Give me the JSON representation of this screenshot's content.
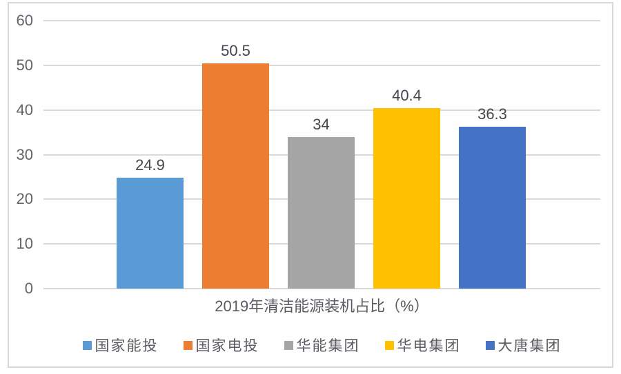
{
  "chart_data": {
    "type": "bar",
    "title": "",
    "xlabel": "2019年清洁能源装机占比（%）",
    "ylabel": "",
    "ylim": [
      0,
      60
    ],
    "yticks": [
      0,
      10,
      20,
      30,
      40,
      50,
      60
    ],
    "grid": true,
    "legend_position": "bottom",
    "categories": [
      "国家能投",
      "国家电投",
      "华能集团",
      "华电集团",
      "大唐集团"
    ],
    "values": [
      24.9,
      50.5,
      34,
      40.4,
      36.3
    ],
    "value_labels": [
      "24.9",
      "50.5",
      "34",
      "40.4",
      "36.3"
    ],
    "bar_colors": [
      "#5B9BD5",
      "#ED7D31",
      "#A5A5A5",
      "#FFC000",
      "#4472C4"
    ],
    "legend": [
      {
        "label": "国家能投",
        "color": "#5B9BD5"
      },
      {
        "label": "国家电投",
        "color": "#ED7D31"
      },
      {
        "label": "华能集团",
        "color": "#A5A5A5"
      },
      {
        "label": "华电集团",
        "color": "#FFC000"
      },
      {
        "label": "大唐集团",
        "color": "#4472C4"
      }
    ]
  },
  "colors": {
    "gridline": "#dadada",
    "frame_border": "#d8d8d8",
    "axis_text": "#64646c",
    "value_text": "#46464c",
    "title_text": "#5a5a60",
    "legend_text": "#5a5a60",
    "background": "#ffffff"
  }
}
